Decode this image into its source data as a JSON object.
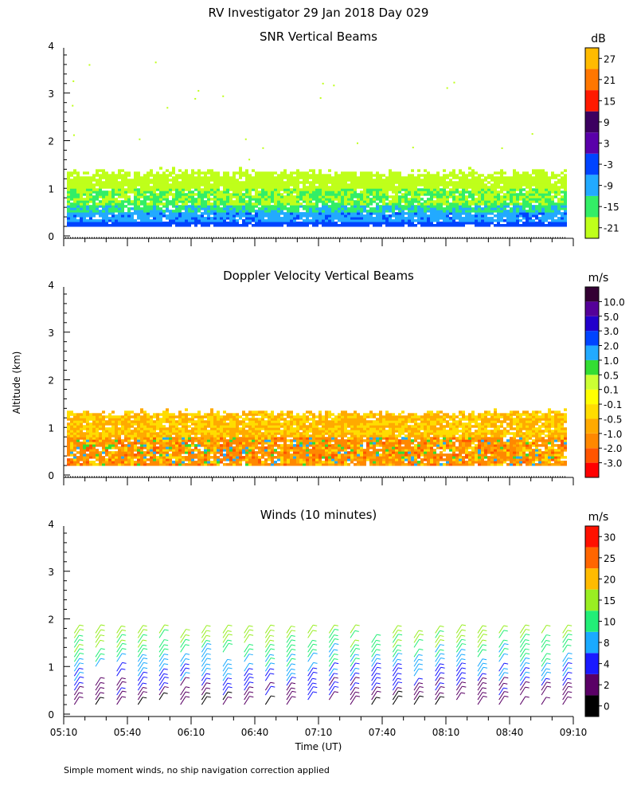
{
  "title": "RV Investigator  29 Jan 2018 Day 029",
  "y_axis_label": "Altitude (km)",
  "x_axis_label": "Time (UT)",
  "footnote": "Simple moment winds, no ship navigation correction applied",
  "chart_data": [
    {
      "id": "snr",
      "type": "heatmap",
      "title": "SNR Vertical Beams",
      "xlabel": "",
      "ylabel": "Altitude (km)",
      "x_range_minutes": [
        310,
        550
      ],
      "ylim": [
        0,
        4
      ],
      "y_ticks": [
        "0",
        "1",
        "2",
        "3",
        "4"
      ],
      "colorbar": {
        "unit": "dB",
        "levels": [
          "-21",
          "-15",
          "-9",
          "-3",
          "3",
          "9",
          "15",
          "21",
          "27"
        ],
        "colors": [
          "#bfff1a",
          "#33ee66",
          "#22aaff",
          "#0044ff",
          "#5a00aa",
          "#3c0060",
          "#ff1a00",
          "#ff7700",
          "#ffbb00"
        ]
      },
      "echo_top_km": 1.35
    },
    {
      "id": "doppler",
      "type": "heatmap",
      "title": "Doppler Velocity Vertical Beams",
      "xlabel": "",
      "ylabel": "Altitude (km)",
      "x_range_minutes": [
        310,
        550
      ],
      "ylim": [
        0,
        4
      ],
      "y_ticks": [
        "0",
        "1",
        "2",
        "3",
        "4"
      ],
      "colorbar": {
        "unit": "m/s",
        "levels": [
          "-3.0",
          "-2.0",
          "-1.0",
          "-0.5",
          "-0.1",
          "0.1",
          "0.5",
          "1.0",
          "2.0",
          "3.0",
          "5.0",
          "10.0"
        ],
        "colors": [
          "#ff0000",
          "#ff5500",
          "#ff8800",
          "#ffaa00",
          "#ffdd00",
          "#ffff00",
          "#ccff33",
          "#33dd33",
          "#22aaff",
          "#0044ff",
          "#2200cc",
          "#550099",
          "#330033"
        ]
      },
      "echo_top_km": 1.3
    },
    {
      "id": "winds",
      "type": "scatter",
      "title": "Winds (10 minutes)",
      "xlabel": "Time (UT)",
      "ylabel": "Altitude (km)",
      "x_range_minutes": [
        310,
        550
      ],
      "ylim": [
        0,
        4
      ],
      "y_ticks": [
        "0",
        "1",
        "2",
        "3",
        "4"
      ],
      "x_ticks": [
        "05:10",
        "05:40",
        "06:10",
        "06:40",
        "07:10",
        "07:40",
        "08:10",
        "08:40",
        "09:10"
      ],
      "profile_interval_min": 10,
      "profile_top_km": 1.75,
      "colorbar": {
        "unit": "m/s",
        "levels": [
          "0",
          "2",
          "4",
          "8",
          "10",
          "15",
          "20",
          "25",
          "30"
        ],
        "colors": [
          "#000000",
          "#5a0066",
          "#1a1aff",
          "#1aaaff",
          "#22ee77",
          "#99ee22",
          "#ffbb00",
          "#ff6600",
          "#ff1100"
        ]
      }
    }
  ]
}
